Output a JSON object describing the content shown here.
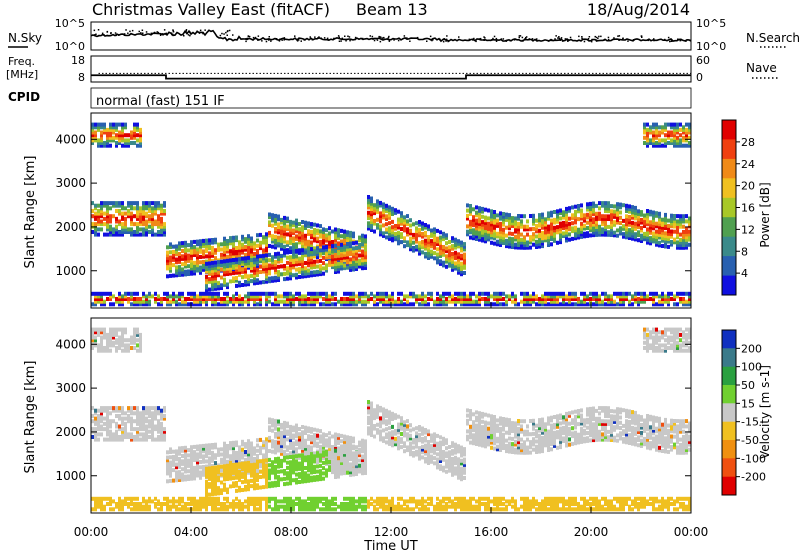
{
  "header": {
    "title": "Christmas Valley East (fitACF)",
    "beam": "Beam 13",
    "date": "18/Aug/2014"
  },
  "noise_panel": {
    "left_label": "N.Sky",
    "right_label": "N.Search",
    "tick_top": "10^5",
    "tick_bottom": "10^0"
  },
  "freq_panel": {
    "left_label_1": "Freq.",
    "left_label_2": "[MHz]",
    "right_label": "Nave",
    "left_ticks": [
      "18",
      "8"
    ],
    "right_ticks": [
      "60",
      "0"
    ]
  },
  "cpid": {
    "label": "CPID",
    "value": "normal (fast) 151 IF"
  },
  "chart_data": [
    {
      "type": "heatmap",
      "title": "",
      "ylabel": "Slant Range [km]",
      "xlabel": "Time UT",
      "x_ticks": [
        "00:00",
        "04:00",
        "08:00",
        "12:00",
        "16:00",
        "20:00",
        "00:00"
      ],
      "y_ticks": [
        1000,
        2000,
        3000,
        4000
      ],
      "ylim": [
        150,
        4600
      ],
      "xlim_hours": [
        0,
        24
      ],
      "colorbar": {
        "label": "Power [dB]",
        "ticks": [
          "4",
          "8",
          "12",
          "16",
          "20",
          "24",
          "28"
        ],
        "colors": [
          "#1010e0",
          "#2860b0",
          "#3a8a8a",
          "#50a050",
          "#a8c828",
          "#f0c020",
          "#f08a18",
          "#f04010",
          "#e00000"
        ]
      }
    },
    {
      "type": "heatmap",
      "title": "",
      "ylabel": "Slant Range [km]",
      "xlabel": "Time UT",
      "x_ticks": [
        "00:00",
        "04:00",
        "08:00",
        "12:00",
        "16:00",
        "20:00",
        "00:00"
      ],
      "y_ticks": [
        1000,
        2000,
        3000,
        4000
      ],
      "ylim": [
        150,
        4600
      ],
      "xlim_hours": [
        0,
        24
      ],
      "colorbar": {
        "label": "Velocity [m s-1]",
        "ticks": [
          "200",
          "100",
          "50",
          "15",
          "-15",
          "-50",
          "-100",
          "-200"
        ],
        "colors": [
          "#1030c0",
          "#3a7a8a",
          "#2aa040",
          "#70d030",
          "#c8c8c8",
          "#f0c020",
          "#f09010",
          "#f05010",
          "#e00000"
        ]
      }
    }
  ],
  "x_axis_title": "Time UT"
}
